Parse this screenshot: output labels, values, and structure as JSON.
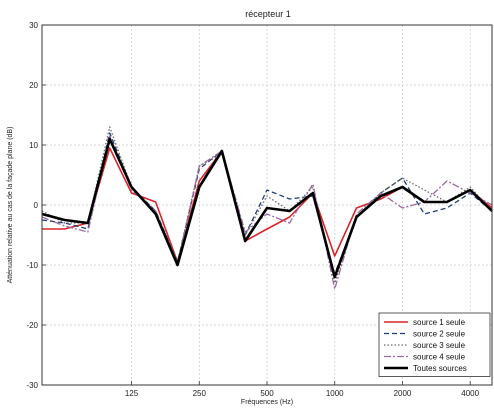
{
  "chart_data": {
    "type": "line",
    "title": "récepteur 1",
    "xlabel": "Fréquences (Hz)",
    "ylabel": "Atténuation relative au cas de la façade plane (dB)",
    "xscale": "log",
    "xlim": [
      50,
      5000
    ],
    "ylim": [
      -30,
      30
    ],
    "x_ticks": [
      125,
      250,
      500,
      1000,
      2000,
      4000
    ],
    "x_tick_labels": [
      "125",
      "250",
      "500",
      "1000",
      "2000",
      "4000"
    ],
    "y_ticks": [
      -30,
      -20,
      -10,
      0,
      10,
      20,
      30
    ],
    "y_tick_labels": [
      "-30",
      "-20",
      "-10",
      "0",
      "10",
      "20",
      "30"
    ],
    "grid": true,
    "legend_position": "bottom-right",
    "x": [
      50,
      63,
      80,
      100,
      125,
      160,
      200,
      250,
      315,
      400,
      500,
      630,
      800,
      1000,
      1250,
      1600,
      2000,
      2500,
      3150,
      4000,
      5000
    ],
    "series": [
      {
        "name": "source 1 seule",
        "color": "#d9262b",
        "dash": "solid",
        "width": 1.6,
        "values": [
          -4,
          -4,
          -3,
          9.5,
          2,
          0.5,
          -9.5,
          4,
          9,
          -6,
          -4,
          -2,
          2,
          -8.5,
          -0.5,
          1,
          3,
          0.5,
          0.5,
          2.5,
          -0.5
        ]
      },
      {
        "name": "source 2 seule",
        "color": "#1f3d7a",
        "dash": "5,3",
        "width": 1.3,
        "values": [
          -2.5,
          -3,
          -4,
          12,
          3,
          -1,
          -9.5,
          6,
          9,
          -5,
          2.5,
          1,
          1.5,
          -11.5,
          -2,
          2,
          4.5,
          -1.5,
          -0.5,
          2,
          -1
        ]
      },
      {
        "name": "source 3 seule",
        "color": "#6a6a6a",
        "dash": "1.5,2",
        "width": 1.3,
        "values": [
          -1,
          -3,
          -3,
          13,
          3,
          -1,
          -9.5,
          6.5,
          8.5,
          -5,
          1.5,
          -1,
          3,
          -13,
          -2,
          2,
          4.5,
          2.5,
          0.5,
          3,
          -1
        ]
      },
      {
        "name": "source 4 seule",
        "color": "#9a6a9e",
        "dash": "7,2,2,2",
        "width": 1.3,
        "values": [
          -2,
          -3.5,
          -4.5,
          11.5,
          2.5,
          -1,
          -10,
          6.5,
          9,
          -4.5,
          -1.5,
          -3,
          3.5,
          -14,
          -1.5,
          2,
          -0.5,
          0.5,
          4,
          2,
          0
        ]
      },
      {
        "name": "Toutes sources",
        "color": "#000000",
        "dash": "solid",
        "width": 2.6,
        "values": [
          -1.5,
          -2.5,
          -3,
          11,
          3,
          -1.5,
          -10,
          3,
          9,
          -6,
          -0.5,
          -1,
          2,
          -12,
          -2,
          1.5,
          3,
          0.5,
          0.5,
          2.5,
          -1
        ]
      }
    ]
  }
}
